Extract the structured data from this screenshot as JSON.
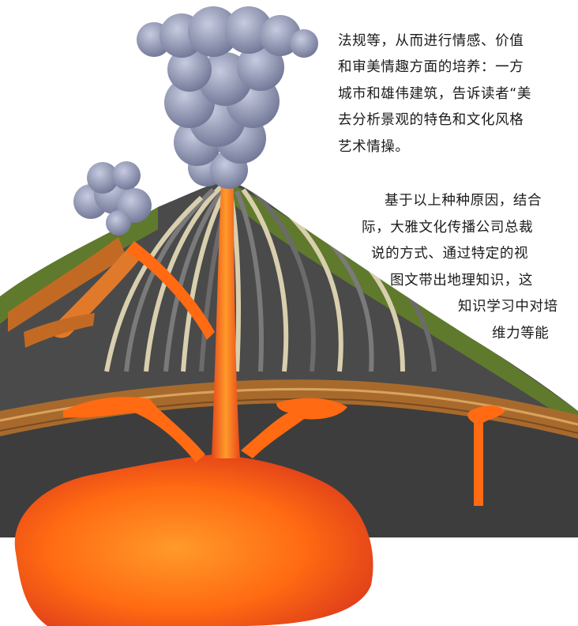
{
  "paragraph_1": {
    "lines": [
      "",
      "法规等，从而进行情感、价值",
      "和审美情趣方面的培养：一方",
      "城市和雄伟建筑，告诉读者“美",
      "去分析景观的特色和文化风格",
      "艺术情操。"
    ]
  },
  "paragraph_2": {
    "lines": [
      "基于以上种种原因，结合",
      "际，大雅文化传播公司总裁",
      "说的方式、通过特定的视",
      "图文带出地理知识，这",
      "知识学习中对培",
      "维力等能"
    ]
  },
  "illustration": {
    "subject": "volcano-cross-section",
    "colors": {
      "magma_bright": "#ff7a1a",
      "magma_dark": "#e2401a",
      "rock_grey": "#6b6b6b",
      "rock_dark": "#3d3d3d",
      "strata_cream": "#d9cfae",
      "grass_green": "#5f7a2c",
      "crust_brown": "#a86a2c",
      "smoke": "#8d93b3"
    }
  }
}
